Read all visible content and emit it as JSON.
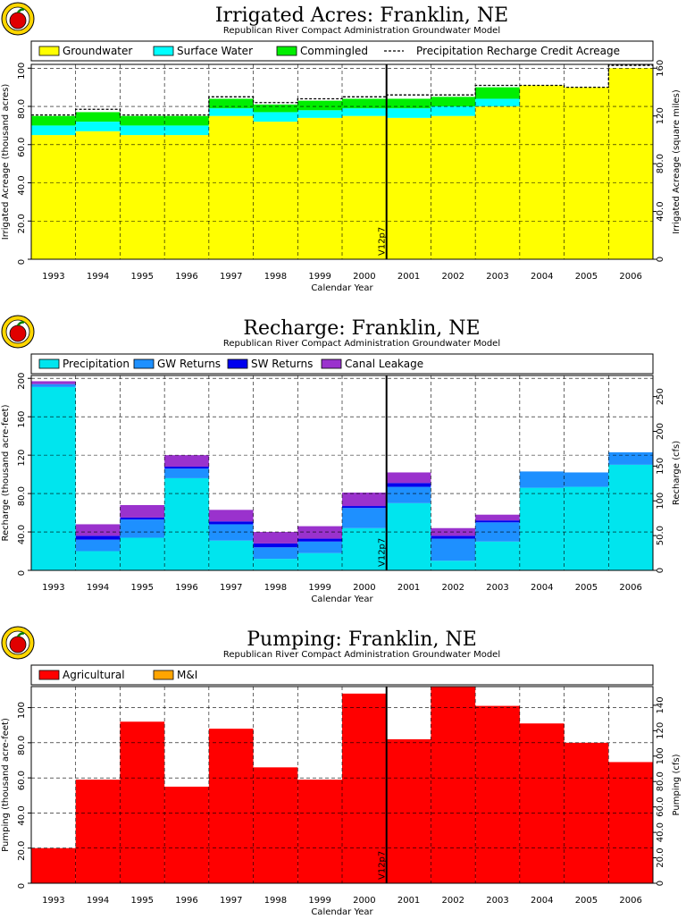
{
  "years": [
    "1993",
    "1994",
    "1995",
    "1996",
    "1997",
    "1998",
    "1999",
    "2000",
    "2001",
    "2002",
    "2003",
    "2004",
    "2005",
    "2006"
  ],
  "xlabel": "Calendar Year",
  "marker_label": "V12p7",
  "chart_data": [
    {
      "type": "area",
      "title": "Irrigated Acres: Franklin, NE",
      "subtitle": "Republican River Compact Administration Groundwater Model",
      "ylabel": "Irrigated Acreage (thousand acres)",
      "ylabel2": "Irrigated Acreage (square miles)",
      "ylim": [
        0,
        102
      ],
      "ylim2": [
        0,
        163.2
      ],
      "yticks": [
        "0",
        "20.0",
        "40.0",
        "60.0",
        "80.0",
        "100"
      ],
      "yticks2": [
        "0",
        "40.0",
        "80.0",
        "120",
        "160"
      ],
      "stacked": true,
      "series": [
        {
          "name": "Groundwater",
          "color": "#ffff00",
          "values": [
            65,
            67,
            65,
            65,
            75,
            72,
            74,
            75,
            74,
            75,
            80,
            91,
            90,
            100
          ]
        },
        {
          "name": "Surface Water",
          "color": "#00ffff",
          "values": [
            5,
            5,
            5,
            5,
            4,
            5,
            4,
            4,
            5,
            5,
            4,
            0,
            0,
            0
          ]
        },
        {
          "name": "Commingled",
          "color": "#00ee00",
          "values": [
            5,
            5,
            5,
            5,
            5,
            4,
            5,
            5,
            5,
            5,
            6,
            0,
            0,
            0
          ]
        }
      ],
      "line": {
        "name": "Precipitation Recharge Credit Acreage",
        "values": [
          75.5,
          78.5,
          75.5,
          75.5,
          85,
          82,
          84,
          85,
          86,
          86,
          91,
          91,
          90,
          101.5
        ]
      },
      "marker_after_index": 7,
      "grid": true,
      "legend": "top"
    },
    {
      "type": "area",
      "title": "Recharge: Franklin, NE",
      "subtitle": "Republican River Compact Administration Groundwater Model",
      "ylabel": "Recharge (thousand acre-feet)",
      "ylabel2": "Recharge (cfs)",
      "ylim": [
        0,
        203
      ],
      "ylim2": [
        0,
        280.4
      ],
      "yticks": [
        "0",
        "40.0",
        "80.0",
        "120",
        "160",
        "200"
      ],
      "yticks2": [
        "0",
        "50.0",
        "100",
        "150",
        "200",
        "250"
      ],
      "stacked": true,
      "series": [
        {
          "name": "Precipitation",
          "color": "#00e5ee",
          "values": [
            191,
            20,
            34,
            96,
            31,
            12,
            18,
            44,
            70,
            10,
            30,
            86,
            87,
            110
          ]
        },
        {
          "name": "GW Returns",
          "color": "#1e90ff",
          "values": [
            3,
            12,
            19,
            10,
            17,
            12,
            12,
            21,
            17,
            23,
            20,
            17,
            15,
            13
          ]
        },
        {
          "name": "SW Returns",
          "color": "#0000ee",
          "values": [
            0,
            4,
            2,
            2,
            3,
            4,
            3,
            2,
            4,
            3,
            2,
            0,
            0,
            0
          ]
        },
        {
          "name": "Canal Leakage",
          "color": "#9a32cd",
          "values": [
            3,
            12,
            13,
            12,
            12,
            12,
            13,
            14,
            11,
            8,
            6,
            0,
            0,
            0
          ]
        }
      ],
      "marker_after_index": 7,
      "grid": true,
      "legend": "top"
    },
    {
      "type": "area",
      "title": "Pumping: Franklin, NE",
      "subtitle": "Republican River Compact Administration Groundwater Model",
      "ylabel": "Pumping (thousand acre-feet)",
      "ylabel2": "Pumping (cfs)",
      "ylim": [
        0,
        112
      ],
      "ylim2": [
        0,
        154.7
      ],
      "yticks": [
        "0",
        "20.0",
        "40.0",
        "60.0",
        "80.0",
        "100"
      ],
      "yticks2": [
        "0",
        "20.0",
        "40.0",
        "60.0",
        "80.0",
        "100",
        "120",
        "140"
      ],
      "stacked": true,
      "series": [
        {
          "name": "Agricultural",
          "color": "#ff0000",
          "values": [
            20,
            59,
            92,
            55,
            88,
            66,
            59,
            108,
            82,
            112,
            101,
            91,
            80,
            69
          ]
        },
        {
          "name": "M&I",
          "color": "#ffa500",
          "values": [
            0,
            0,
            0,
            0,
            0,
            0,
            0,
            0,
            0,
            0,
            0,
            0,
            0,
            0
          ]
        }
      ],
      "marker_after_index": 7,
      "grid": true,
      "legend": "top"
    }
  ]
}
